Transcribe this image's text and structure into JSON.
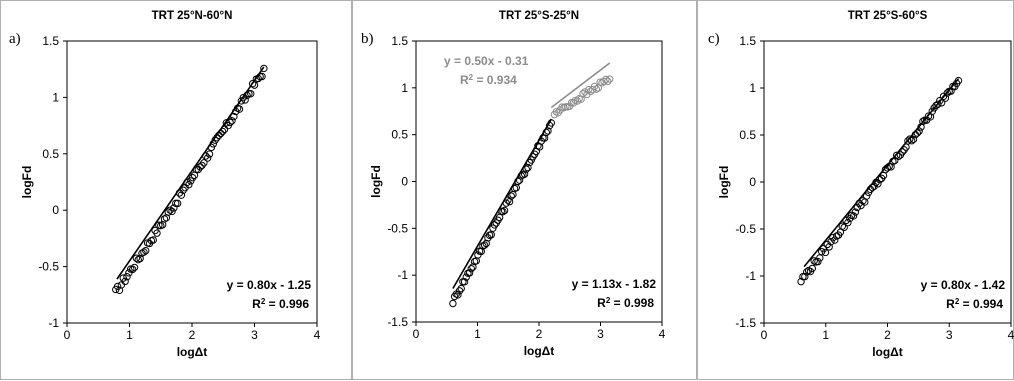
{
  "colors": {
    "primary": "#000000",
    "secondary": "#8c8c8c",
    "frame": "#000000"
  },
  "panels": [
    {
      "id": "a",
      "panel_label": "a)"
    },
    {
      "id": "b",
      "panel_label": "b)"
    },
    {
      "id": "c",
      "panel_label": "c)"
    }
  ],
  "chart_data": [
    {
      "type": "scatter",
      "title": "TRT 25°N-60°N",
      "xlabel": "logΔt",
      "ylabel": "logFd",
      "xlim": [
        0,
        4
      ],
      "ylim": [
        -1,
        1.5
      ],
      "xticks": [
        "0",
        "1",
        "2",
        "3",
        "4"
      ],
      "yticks": [
        "-1",
        "-0.5",
        "0",
        "0.5",
        "1",
        "1.5"
      ],
      "grid": false,
      "series": [
        {
          "color": "#000000",
          "x_range": [
            0.78,
            3.15
          ],
          "points": 80,
          "y_start": -0.73,
          "y_end": 1.24,
          "scatter": 0.035
        }
      ],
      "fits": [
        {
          "slope": 0.8,
          "intercept": -1.25,
          "x_range": [
            0.8,
            3.15
          ],
          "color": "#000000",
          "equation": "y = 0.80x - 1.25",
          "r2_prefix": "R",
          "r2_sup": "2",
          "r2_value": " = 0.996",
          "label_pos": "bottom-right"
        }
      ]
    },
    {
      "type": "scatter",
      "title": "TRT 25°S-25°N",
      "xlabel": "logΔt",
      "ylabel": "logFd",
      "xlim": [
        0,
        4
      ],
      "ylim": [
        -1.5,
        1.5
      ],
      "xticks": [
        "0",
        "1",
        "2",
        "3",
        "4"
      ],
      "yticks": [
        "-1.5",
        "-1",
        "-0.5",
        "0",
        "0.5",
        "1",
        "1.5"
      ],
      "grid": false,
      "series": [
        {
          "color": "#000000",
          "x_range": [
            0.6,
            2.2
          ],
          "points": 60,
          "y_start": -1.28,
          "y_end": 0.62,
          "scatter": 0.03
        },
        {
          "color": "#8c8c8c",
          "x_range": [
            2.25,
            3.15
          ],
          "points": 30,
          "y_start": 0.72,
          "y_end": 1.1,
          "scatter": 0.03
        }
      ],
      "fits": [
        {
          "slope": 1.13,
          "intercept": -1.82,
          "x_range": [
            0.6,
            2.2
          ],
          "color": "#000000",
          "equation": "y = 1.13x - 1.82",
          "r2_prefix": "R",
          "r2_sup": "2",
          "r2_value": " = 0.998",
          "label_pos": "bottom-right"
        },
        {
          "slope": 0.5,
          "intercept": -0.31,
          "x_range": [
            2.2,
            3.15
          ],
          "color": "#8c8c8c",
          "equation": "y = 0.50x - 0.31",
          "r2_prefix": "R",
          "r2_sup": "2",
          "r2_value": " = 0.934",
          "label_pos": "top-left"
        }
      ]
    },
    {
      "type": "scatter",
      "title": "TRT 25°S-60°S",
      "xlabel": "logΔt",
      "ylabel": "logFd",
      "xlim": [
        0,
        4
      ],
      "ylim": [
        -1.5,
        1.5
      ],
      "xticks": [
        "0",
        "1",
        "2",
        "3",
        "4"
      ],
      "yticks": [
        "-1.5",
        "-1",
        "-0.5",
        "0",
        "0.5",
        "1",
        "1.5"
      ],
      "grid": false,
      "series": [
        {
          "color": "#000000",
          "x_range": [
            0.6,
            3.15
          ],
          "points": 85,
          "y_start": -1.05,
          "y_end": 1.1,
          "scatter": 0.035
        }
      ],
      "fits": [
        {
          "slope": 0.8,
          "intercept": -1.42,
          "x_range": [
            0.65,
            3.15
          ],
          "color": "#000000",
          "equation": "y = 0.80x - 1.42",
          "r2_prefix": "R",
          "r2_sup": "2",
          "r2_value": " = 0.994",
          "label_pos": "bottom-right"
        }
      ]
    }
  ]
}
